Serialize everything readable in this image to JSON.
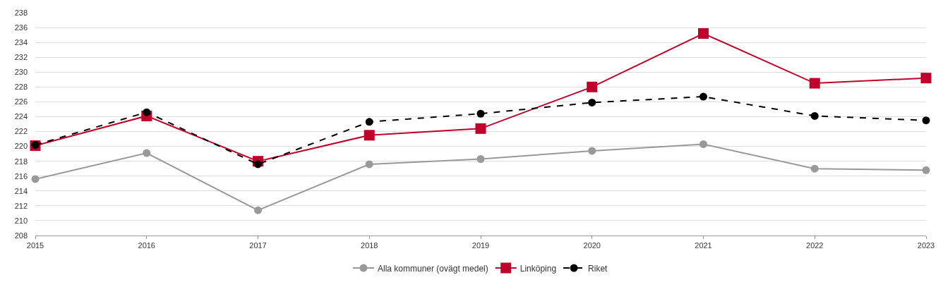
{
  "chart_data": {
    "type": "line",
    "x": [
      2015,
      2016,
      2017,
      2018,
      2019,
      2020,
      2021,
      2022,
      2023
    ],
    "series": [
      {
        "name": "Alla kommuner (ovägt medel)",
        "color": "#999999",
        "marker": "circle",
        "line_style": "solid",
        "values": [
          215.6,
          219.1,
          211.4,
          217.6,
          218.3,
          219.4,
          220.3,
          217.0,
          216.8
        ]
      },
      {
        "name": "Linköping",
        "color": "#c0002a",
        "marker": "square",
        "line_style": "solid",
        "values": [
          220.1,
          224.1,
          218.0,
          221.5,
          222.4,
          228.0,
          235.2,
          228.5,
          229.2
        ]
      },
      {
        "name": "Riket",
        "color": "#000000",
        "marker": "circle",
        "line_style": "dashed",
        "values": [
          220.2,
          224.6,
          217.6,
          223.3,
          224.4,
          225.9,
          226.7,
          224.1,
          223.5
        ]
      }
    ],
    "xlim": [
      2015,
      2023
    ],
    "xticks": [
      2015,
      2016,
      2017,
      2018,
      2019,
      2020,
      2021,
      2022,
      2023
    ],
    "ylim": [
      208,
      238
    ],
    "yticks": [
      208,
      210,
      212,
      214,
      216,
      218,
      220,
      222,
      224,
      226,
      228,
      230,
      232,
      234,
      236,
      238
    ],
    "grid": "y",
    "legend": "bottom"
  }
}
